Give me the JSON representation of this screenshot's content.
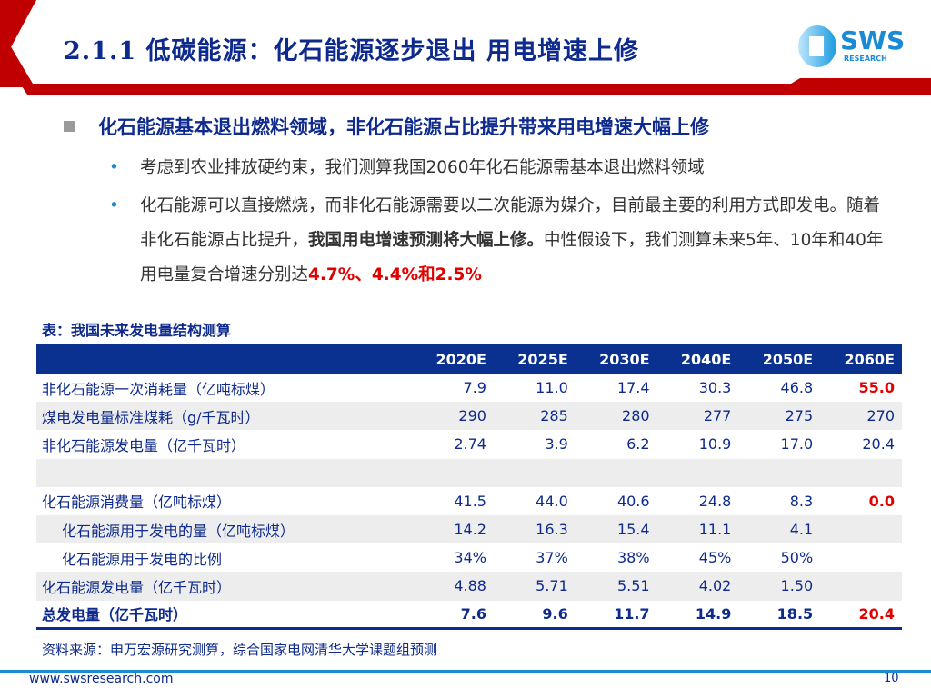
{
  "header": {
    "title": "2.1.1 低碳能源：化石能源逐步退出 用电增速上修",
    "logo_text": "SWS",
    "logo_sub": "RESEARCH",
    "accent": "#c00000"
  },
  "heading": "化石能源基本退出燃料领域，非化石能源占比提升带来用电增速大幅上修",
  "bullets": [
    {
      "text": "考虑到农业排放硬约束，我们测算我国2060年化石能源需基本退出燃料领域"
    },
    {
      "pre": "化石能源可以直接燃烧，而非化石能源需要以二次能源为媒介，目前最主要的利用方式即发电。随着非化石能源占比提升，",
      "bold": "我国用电增速预测将大幅上修。",
      "mid": "中性假设下，我们测算未来5年、10年和40年用电量复合增速分别达",
      "red": "4.7%、4.4%和2.5%"
    }
  ],
  "table": {
    "caption": "表：我国未来发电量结构测算",
    "headers": [
      "",
      "2020E",
      "2025E",
      "2030E",
      "2040E",
      "2050E",
      "2060E"
    ],
    "rows": [
      [
        "非化石能源一次消耗量（亿吨标煤）",
        "7.9",
        "11.0",
        "17.4",
        "30.3",
        "46.8",
        "55.0"
      ],
      [
        "煤电发电量标准煤耗（g/千瓦时）",
        "290",
        "285",
        "280",
        "277",
        "275",
        "270"
      ],
      [
        "非化石能源发电量（亿千瓦时）",
        "2.74",
        "3.9",
        "6.2",
        "10.9",
        "17.0",
        "20.4"
      ],
      [
        "",
        "",
        "",
        "",
        "",
        "",
        ""
      ],
      [
        "化石能源消费量（亿吨标煤）",
        "41.5",
        "44.0",
        "40.6",
        "24.8",
        "8.3",
        "0.0"
      ],
      [
        "化石能源用于发电的量（亿吨标煤）",
        "14.2",
        "16.3",
        "15.4",
        "11.1",
        "4.1",
        ""
      ],
      [
        "化石能源用于发电的比例",
        "34%",
        "37%",
        "38%",
        "45%",
        "50%",
        ""
      ],
      [
        "化石能源发电量（亿千瓦时）",
        "4.88",
        "5.71",
        "5.51",
        "4.02",
        "1.50",
        ""
      ],
      [
        "总发电量（亿千瓦时）",
        "7.6",
        "9.6",
        "11.7",
        "14.9",
        "18.5",
        "20.4"
      ]
    ]
  },
  "source": "资料来源：申万宏源研究测算，综合国家电网清华大学课题组预测",
  "footer": {
    "url": "www.swsresearch.com",
    "page": "10"
  }
}
